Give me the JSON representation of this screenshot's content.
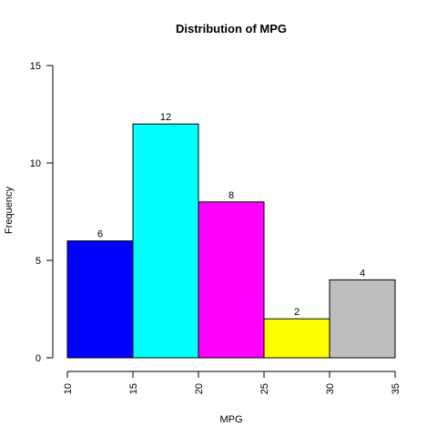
{
  "chart_data": {
    "type": "bar",
    "title": "Distribution of MPG",
    "xlabel": "MPG",
    "ylabel": "Frequency",
    "bins": [
      [
        10,
        15
      ],
      [
        15,
        20
      ],
      [
        20,
        25
      ],
      [
        25,
        30
      ],
      [
        30,
        35
      ]
    ],
    "values": [
      6,
      12,
      8,
      2,
      4
    ],
    "data_labels": [
      "6",
      "12",
      "8",
      "2",
      "4"
    ],
    "colors": [
      "#0000FF",
      "#00FFFF",
      "#FF00FF",
      "#FFFF00",
      "#BEBEBE"
    ],
    "xlim": [
      10,
      35
    ],
    "ylim": [
      0,
      15
    ],
    "x_ticks": [
      10,
      15,
      20,
      25,
      30,
      35
    ],
    "x_tick_labels": [
      "10",
      "15",
      "20",
      "25",
      "30",
      "35"
    ],
    "y_ticks": [
      0,
      5,
      10,
      15
    ],
    "y_tick_labels": [
      "0",
      "5",
      "10",
      "15"
    ],
    "grid": false,
    "legend": "none"
  }
}
